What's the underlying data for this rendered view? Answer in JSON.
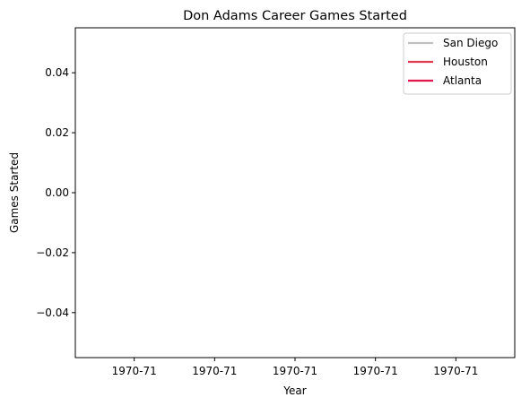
{
  "chart_data": {
    "type": "line",
    "title": "Don Adams  Career Games Started",
    "xlabel": "Year",
    "ylabel": "Games Started",
    "x_tick_labels": [
      "1970-71",
      "1970-71",
      "1970-71",
      "1970-71",
      "1970-71"
    ],
    "y_ticks": [
      0.04,
      0.02,
      0.0,
      -0.02,
      -0.04
    ],
    "y_tick_labels": [
      "0.04",
      "0.02",
      "0.00",
      "−0.02",
      "−0.04"
    ],
    "ylim": [
      -0.055,
      0.055
    ],
    "grid": false,
    "legend_position": "top-right",
    "series": [
      {
        "name": "San Diego",
        "color": "#c0c0c0",
        "x": [],
        "values": []
      },
      {
        "name": "Houston",
        "color": "#e03a4e",
        "x": [],
        "values": []
      },
      {
        "name": "Atlanta",
        "color": "#e0174e",
        "x": [],
        "values": []
      }
    ]
  }
}
